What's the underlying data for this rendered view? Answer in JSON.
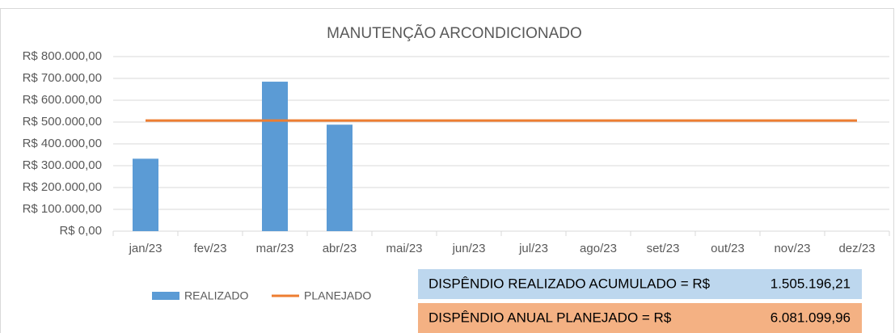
{
  "chart_data": {
    "type": "bar",
    "title": "MANUTENÇÃO ARCONDICIONADO",
    "categories": [
      "jan/23",
      "fev/23",
      "mar/23",
      "abr/23",
      "mai/23",
      "jun/23",
      "jul/23",
      "ago/23",
      "set/23",
      "out/23",
      "nov/23",
      "dez/23"
    ],
    "series": [
      {
        "name": "REALIZADO",
        "type": "bar",
        "color": "#5b9bd5",
        "values": [
          332000,
          null,
          685000,
          488000,
          null,
          null,
          null,
          null,
          null,
          null,
          null,
          null
        ]
      },
      {
        "name": "PLANEJADO",
        "type": "line",
        "color": "#ed7d31",
        "values": [
          506758.33,
          506758.33,
          506758.33,
          506758.33,
          506758.33,
          506758.33,
          506758.33,
          506758.33,
          506758.33,
          506758.33,
          506758.33,
          506758.33
        ]
      }
    ],
    "ylim": [
      0,
      800000
    ],
    "yticks": [
      {
        "value": 0,
        "label": "R$ 0,00"
      },
      {
        "value": 100000,
        "label": "R$ 100.000,00"
      },
      {
        "value": 200000,
        "label": "R$ 200.000,00"
      },
      {
        "value": 300000,
        "label": "R$ 300.000,00"
      },
      {
        "value": 400000,
        "label": "R$ 400.000,00"
      },
      {
        "value": 500000,
        "label": "R$ 500.000,00"
      },
      {
        "value": 600000,
        "label": "R$ 600.000,00"
      },
      {
        "value": 700000,
        "label": "R$ 700.000,00"
      },
      {
        "value": 800000,
        "label": "R$ 800.000,00"
      }
    ],
    "grid": true,
    "legend": "bottom-left",
    "annotations": [
      {
        "label": "DISPÊNDIO REALIZADO ACUMULADO = R$",
        "value": "1.505.196,21",
        "color": "#bdd7ee"
      },
      {
        "label": "DISPÊNDIO ANUAL PLANEJADO = R$",
        "value": "6.081.099,96",
        "color": "#f4b183"
      }
    ]
  }
}
